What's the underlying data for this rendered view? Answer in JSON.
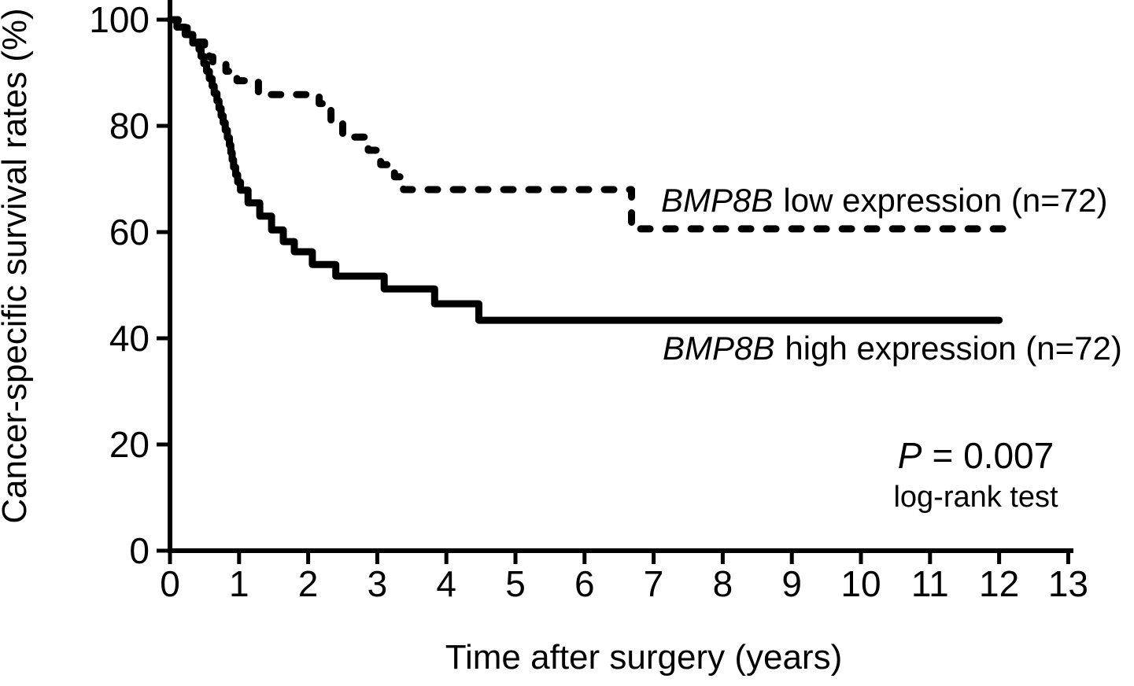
{
  "figure": {
    "background_color": "#ffffff",
    "ink_color": "#000000"
  },
  "chart_data": {
    "type": "line",
    "chart_kind": "kaplan-meier-step",
    "title": "",
    "xlabel": "Time after surgery (years)",
    "ylabel": "Cancer-specific survival rates (%)",
    "xlim": [
      0,
      13
    ],
    "ylim": [
      0,
      100
    ],
    "grid": false,
    "legend_position": "inline-right-of-curves",
    "x_ticks": [
      0,
      1,
      2,
      3,
      4,
      5,
      6,
      7,
      8,
      9,
      10,
      11,
      12,
      13
    ],
    "y_ticks": [
      0,
      20,
      40,
      60,
      80,
      100
    ],
    "series": [
      {
        "name": "BMP8B low expression (n=72)",
        "gene": "BMP8B",
        "label_suffix": "low expression (n=72)",
        "n": 72,
        "line_style": "dashed",
        "color": "#000000",
        "steps": [
          [
            0,
            100
          ],
          [
            0.12,
            98.6
          ],
          [
            0.25,
            97.2
          ],
          [
            0.38,
            95.8
          ],
          [
            0.5,
            94.4
          ],
          [
            0.57,
            93.0
          ],
          [
            0.62,
            91.6
          ],
          [
            0.81,
            90.3
          ],
          [
            0.97,
            88.5
          ],
          [
            1.28,
            85.9
          ],
          [
            2.16,
            84.2
          ],
          [
            2.33,
            80.8
          ],
          [
            2.5,
            77.9
          ],
          [
            2.87,
            75.4
          ],
          [
            3.05,
            72.7
          ],
          [
            3.25,
            70.4
          ],
          [
            3.38,
            68.0
          ],
          [
            6.68,
            60.6
          ]
        ],
        "end_time": 12.25,
        "final_value": 60.6
      },
      {
        "name": "BMP8B high expression (n=72)",
        "gene": "BMP8B",
        "label_suffix": "high expression (n=72)",
        "n": 72,
        "line_style": "solid",
        "color": "#000000",
        "steps": [
          [
            0,
            100
          ],
          [
            0.1,
            98.6
          ],
          [
            0.22,
            97.2
          ],
          [
            0.33,
            95.6
          ],
          [
            0.42,
            94.4
          ],
          [
            0.45,
            93.1
          ],
          [
            0.49,
            91.7
          ],
          [
            0.53,
            90.3
          ],
          [
            0.57,
            88.9
          ],
          [
            0.61,
            87.5
          ],
          [
            0.64,
            86.1
          ],
          [
            0.68,
            84.7
          ],
          [
            0.71,
            83.3
          ],
          [
            0.74,
            81.9
          ],
          [
            0.77,
            80.6
          ],
          [
            0.8,
            79.2
          ],
          [
            0.83,
            77.8
          ],
          [
            0.86,
            76.4
          ],
          [
            0.88,
            75.0
          ],
          [
            0.9,
            73.6
          ],
          [
            0.92,
            72.2
          ],
          [
            0.95,
            70.8
          ],
          [
            0.98,
            69.4
          ],
          [
            1.02,
            67.9
          ],
          [
            1.13,
            65.5
          ],
          [
            1.3,
            63.0
          ],
          [
            1.47,
            60.4
          ],
          [
            1.64,
            58.2
          ],
          [
            1.8,
            56.3
          ],
          [
            2.06,
            53.9
          ],
          [
            2.4,
            51.7
          ],
          [
            3.1,
            49.3
          ],
          [
            3.83,
            46.5
          ],
          [
            4.47,
            43.4
          ]
        ],
        "end_time": 12.0,
        "final_value": 43.4
      }
    ],
    "annotations": [
      {
        "id": "p-value",
        "italic_part": "P",
        "rest": "= 0.007"
      },
      {
        "id": "test-name",
        "text": "log-rank test"
      }
    ]
  }
}
